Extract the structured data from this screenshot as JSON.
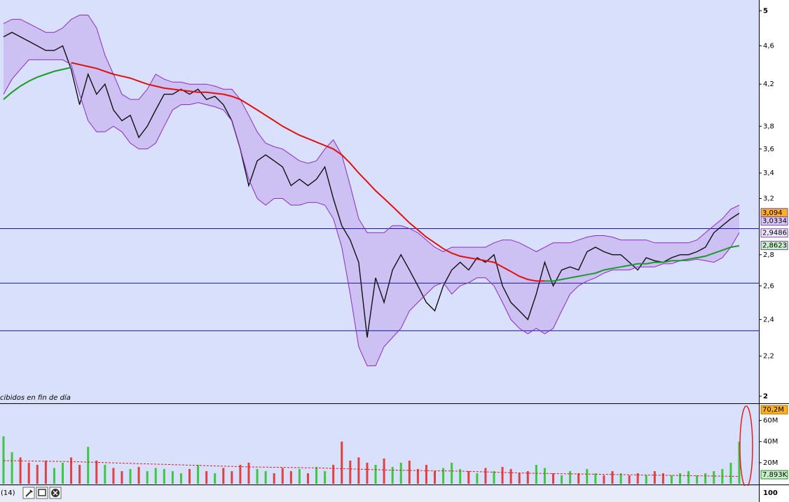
{
  "chart_data": [
    {
      "type": "line",
      "log": true,
      "annotation": "cibidos en fin de día",
      "ylim": [
        1.97,
        5.13
      ],
      "yticks": [
        5,
        {
          "value": 4.6,
          "label": "4,6"
        },
        {
          "value": 4.2,
          "label": "4,2"
        },
        {
          "value": 3.8,
          "label": "3,8"
        },
        {
          "value": 3.6,
          "label": "3,6"
        },
        {
          "value": 3.4,
          "label": "3,4"
        },
        {
          "value": 3.2,
          "label": "3,2"
        },
        {
          "value": 2.8,
          "label": "2,8"
        },
        {
          "value": 2.6,
          "label": "2,6"
        },
        {
          "value": 2.4,
          "label": "2,4"
        },
        {
          "value": 2.2,
          "label": "2,2"
        },
        2
      ],
      "hlines": [
        2.979,
        2.617,
        2.337
      ],
      "hline_color": "#1a1ab0",
      "band_fill": "#c9b8f0",
      "series": [
        {
          "color": "#111111",
          "values": [
            4.7,
            4.75,
            4.7,
            4.65,
            4.6,
            4.55,
            4.55,
            4.6,
            4.35,
            4.0,
            4.3,
            4.1,
            4.2,
            3.95,
            3.85,
            3.9,
            3.7,
            3.8,
            3.95,
            4.1,
            4.1,
            4.15,
            4.1,
            4.15,
            4.05,
            4.08,
            4.0,
            3.85,
            3.6,
            3.3,
            3.5,
            3.55,
            3.5,
            3.45,
            3.3,
            3.35,
            3.3,
            3.35,
            3.45,
            3.2,
            3.0,
            2.9,
            2.75,
            2.3,
            2.65,
            2.5,
            2.7,
            2.8,
            2.7,
            2.6,
            2.5,
            2.45,
            2.6,
            2.7,
            2.75,
            2.7,
            2.78,
            2.75,
            2.8,
            2.6,
            2.5,
            2.45,
            2.4,
            2.55,
            2.75,
            2.6,
            2.7,
            2.72,
            2.7,
            2.82,
            2.85,
            2.82,
            2.8,
            2.8,
            2.75,
            2.7,
            2.78,
            2.76,
            2.75,
            2.78,
            2.8,
            2.8,
            2.82,
            2.85,
            2.95,
            3.0,
            3.05,
            3.09
          ]
        },
        {
          "color": "#8e2bc8",
          "values": [
            4.85,
            4.9,
            4.9,
            4.85,
            4.8,
            4.75,
            4.75,
            4.8,
            4.9,
            4.95,
            4.95,
            4.8,
            4.5,
            4.3,
            4.1,
            4.05,
            4.05,
            4.15,
            4.3,
            4.25,
            4.22,
            4.22,
            4.2,
            4.2,
            4.2,
            4.18,
            4.15,
            4.15,
            4.05,
            3.9,
            3.75,
            3.65,
            3.62,
            3.6,
            3.55,
            3.5,
            3.48,
            3.5,
            3.6,
            3.68,
            3.55,
            3.3,
            3.05,
            2.95,
            2.95,
            2.95,
            3.0,
            3.0,
            2.98,
            2.95,
            2.9,
            2.85,
            2.82,
            2.85,
            2.85,
            2.85,
            2.85,
            2.85,
            2.88,
            2.9,
            2.9,
            2.88,
            2.85,
            2.82,
            2.85,
            2.88,
            2.88,
            2.88,
            2.9,
            2.92,
            2.93,
            2.93,
            2.92,
            2.9,
            2.9,
            2.9,
            2.9,
            2.88,
            2.88,
            2.88,
            2.88,
            2.88,
            2.9,
            2.95,
            3.0,
            3.05,
            3.12,
            3.15
          ]
        },
        {
          "color": "#8e2bc8",
          "values": [
            4.1,
            4.25,
            4.35,
            4.45,
            4.45,
            4.45,
            4.45,
            4.45,
            4.4,
            4.1,
            3.85,
            3.75,
            3.75,
            3.8,
            3.75,
            3.65,
            3.6,
            3.6,
            3.65,
            3.8,
            3.95,
            4.0,
            4.0,
            4.02,
            4.0,
            3.98,
            3.95,
            3.85,
            3.6,
            3.35,
            3.2,
            3.15,
            3.2,
            3.2,
            3.15,
            3.15,
            3.17,
            3.17,
            3.15,
            3.05,
            2.85,
            2.55,
            2.25,
            2.15,
            2.15,
            2.25,
            2.3,
            2.35,
            2.45,
            2.5,
            2.55,
            2.6,
            2.62,
            2.55,
            2.6,
            2.62,
            2.65,
            2.65,
            2.6,
            2.5,
            2.4,
            2.35,
            2.32,
            2.35,
            2.32,
            2.35,
            2.45,
            2.55,
            2.6,
            2.63,
            2.65,
            2.68,
            2.7,
            2.7,
            2.7,
            2.72,
            2.72,
            2.72,
            2.74,
            2.74,
            2.76,
            2.76,
            2.77,
            2.76,
            2.75,
            2.78,
            2.85,
            2.95
          ]
        },
        {
          "color": "#e01010",
          "values": [
            null,
            null,
            null,
            null,
            null,
            null,
            null,
            null,
            4.42,
            4.4,
            4.38,
            4.36,
            4.33,
            4.3,
            4.28,
            4.26,
            4.23,
            4.2,
            4.18,
            4.16,
            4.15,
            4.14,
            4.13,
            4.12,
            4.12,
            4.11,
            4.1,
            4.08,
            4.05,
            4.0,
            3.95,
            3.9,
            3.85,
            3.8,
            3.76,
            3.72,
            3.69,
            3.66,
            3.63,
            3.6,
            3.55,
            3.48,
            3.4,
            3.33,
            3.26,
            3.2,
            3.14,
            3.08,
            3.02,
            2.97,
            2.92,
            2.88,
            2.84,
            2.81,
            2.79,
            2.78,
            2.77,
            2.76,
            2.75,
            2.72,
            2.69,
            2.66,
            2.64,
            2.63,
            2.63,
            null,
            null,
            null,
            null,
            null,
            null,
            null,
            null,
            null,
            null,
            null,
            null,
            null,
            null,
            null,
            null,
            null,
            null,
            null,
            null,
            null,
            null,
            null
          ]
        },
        {
          "color": "#1a9a2a",
          "values": [
            4.05,
            4.12,
            4.18,
            4.23,
            4.27,
            4.3,
            4.33,
            4.35,
            4.37,
            null,
            null,
            null,
            null,
            null,
            null,
            null,
            null,
            null,
            null,
            null,
            null,
            null,
            null,
            null,
            null,
            null,
            null,
            null,
            null,
            null,
            null,
            null,
            null,
            null,
            null,
            null,
            null,
            null,
            null,
            null,
            null,
            null,
            null,
            null,
            null,
            null,
            null,
            null,
            null,
            null,
            null,
            null,
            null,
            null,
            null,
            null,
            null,
            null,
            null,
            null,
            null,
            null,
            null,
            null,
            2.63,
            2.63,
            2.64,
            2.65,
            2.66,
            2.67,
            2.68,
            2.7,
            2.71,
            2.72,
            2.73,
            2.74,
            2.74,
            2.75,
            2.75,
            2.76,
            2.76,
            2.77,
            2.78,
            2.79,
            2.81,
            2.83,
            2.85,
            2.86
          ]
        }
      ],
      "tags": [
        {
          "value": 3.094,
          "label": "3,094",
          "color": "#ffb020"
        },
        {
          "value": 3.0334,
          "label": "3,0334",
          "color": "#d8c8f8"
        },
        {
          "value": 2.9486,
          "label": "2,9486",
          "color": "#f0e8ff"
        },
        {
          "value": 2.8623,
          "label": "2,8623",
          "color": "#c8f0c8"
        }
      ]
    },
    {
      "type": "bar",
      "ylim": [
        0,
        75
      ],
      "yticks": [
        {
          "value": 60,
          "label": "60M"
        },
        {
          "value": 40,
          "label": "40M"
        },
        {
          "value": 20,
          "label": "20M"
        }
      ],
      "up_color": "#3cc83c",
      "down_color": "#e04040",
      "values": [
        45,
        30,
        25,
        20,
        18,
        22,
        15,
        20,
        25,
        18,
        35,
        22,
        18,
        15,
        12,
        14,
        16,
        12,
        15,
        14,
        12,
        10,
        14,
        18,
        12,
        10,
        15,
        12,
        18,
        20,
        14,
        12,
        10,
        15,
        12,
        14,
        10,
        16,
        12,
        18,
        40,
        22,
        25,
        20,
        18,
        24,
        16,
        20,
        22,
        14,
        18,
        12,
        15,
        20,
        14,
        12,
        10,
        15,
        12,
        16,
        14,
        10,
        12,
        18,
        15,
        10,
        8,
        12,
        10,
        14,
        10,
        8,
        12,
        10,
        8,
        10,
        8,
        12,
        10,
        8,
        10,
        12,
        8,
        10,
        12,
        14,
        20,
        40
      ],
      "average": {
        "color": "#d02020",
        "values": [
          22,
          21.5,
          21,
          20,
          19,
          18,
          17,
          16,
          15.5,
          15,
          14,
          13,
          12.5,
          12,
          11,
          10,
          9.5,
          9,
          8.5,
          8,
          7.5,
          7
        ]
      },
      "tags": [
        {
          "value": 70.2,
          "label": "70,2M",
          "color": "#ffb020"
        }
      ],
      "last_label": "7.893K",
      "period": "(14)",
      "lower_tick": "100"
    }
  ]
}
